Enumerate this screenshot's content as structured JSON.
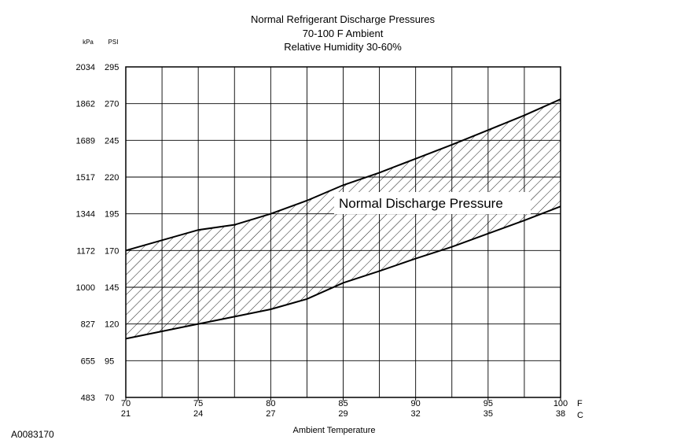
{
  "chart_data": {
    "type": "area",
    "title_lines": [
      "Normal  Refrigerant  Discharge  Pressures",
      "70-100 F Ambient",
      "Relative Humidity 30-60%"
    ],
    "band_label": "Normal Discharge Pressure",
    "xlabel": "Ambient Temperature",
    "x_unit_f": "F",
    "x_unit_c": "C",
    "y_unit_kpa": "kPa",
    "y_unit_psi": "PSI",
    "xlim": [
      70,
      100
    ],
    "ylim": [
      70,
      295
    ],
    "x_ticks": [
      {
        "f": "70",
        "c": "21"
      },
      {
        "f": "75",
        "c": "24"
      },
      {
        "f": "80",
        "c": "27"
      },
      {
        "f": "85",
        "c": "29"
      },
      {
        "f": "90",
        "c": "32"
      },
      {
        "f": "95",
        "c": "35"
      },
      {
        "f": "100",
        "c": "38"
      }
    ],
    "y_ticks": [
      {
        "psi": "70",
        "kpa": "483"
      },
      {
        "psi": "95",
        "kpa": "655"
      },
      {
        "psi": "120",
        "kpa": "827"
      },
      {
        "psi": "145",
        "kpa": "1000"
      },
      {
        "psi": "170",
        "kpa": "1172"
      },
      {
        "psi": "195",
        "kpa": "1344"
      },
      {
        "psi": "220",
        "kpa": "1517"
      },
      {
        "psi": "245",
        "kpa": "1689"
      },
      {
        "psi": "270",
        "kpa": "1862"
      },
      {
        "psi": "295",
        "kpa": "2034"
      }
    ],
    "series": [
      {
        "x": [
          70,
          75,
          77.5,
          80,
          82.5,
          85,
          87.5,
          90,
          92.5,
          95,
          97.5,
          100
        ],
        "y": [
          170,
          184,
          187.5,
          195,
          204,
          214.5,
          223,
          232.5,
          242,
          252,
          262,
          273
        ]
      },
      {
        "x": [
          70,
          75,
          77.5,
          80,
          82.5,
          85,
          87.5,
          90,
          92.5,
          95,
          97.5,
          100
        ],
        "y": [
          110,
          120,
          125,
          130,
          137,
          148,
          156,
          164.5,
          172.5,
          181.5,
          190.5,
          200
        ]
      }
    ],
    "grid": true
  },
  "footer": {
    "figure_id": "A0083170"
  }
}
